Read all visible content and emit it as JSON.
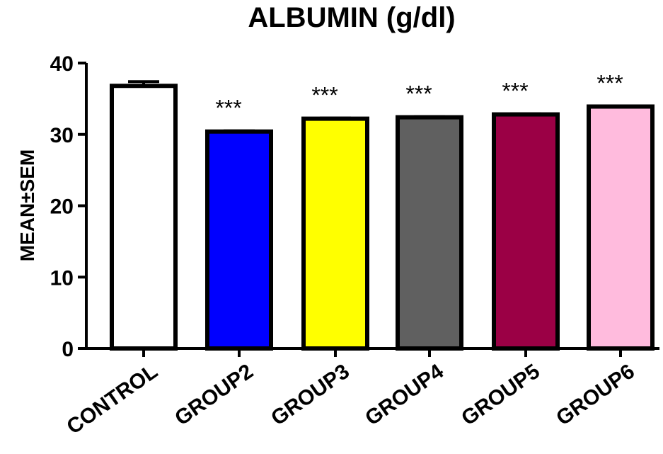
{
  "chart_data": {
    "type": "bar",
    "title": "ALBUMIN (g/dl)",
    "xlabel": "",
    "ylabel": "MEAN±SEM",
    "ylim": [
      0,
      40
    ],
    "yticks": [
      "0",
      "10",
      "20",
      "30",
      "40"
    ],
    "categories": [
      "CONTROL",
      "GROUP2",
      "GROUP3",
      "GROUP4",
      "GROUP5",
      "GROUP6"
    ],
    "values": [
      36.8,
      30.4,
      32.2,
      32.4,
      32.8,
      33.9
    ],
    "errors": [
      0.6,
      0.1,
      0.1,
      0.1,
      0.1,
      0.1
    ],
    "significance": [
      "",
      "***",
      "***",
      "***",
      "***",
      "***"
    ],
    "colors": [
      "#ffffff",
      "#0000ff",
      "#ffff00",
      "#606060",
      "#9b0045",
      "#ffbbdd"
    ],
    "grid": false,
    "legend": "none"
  }
}
